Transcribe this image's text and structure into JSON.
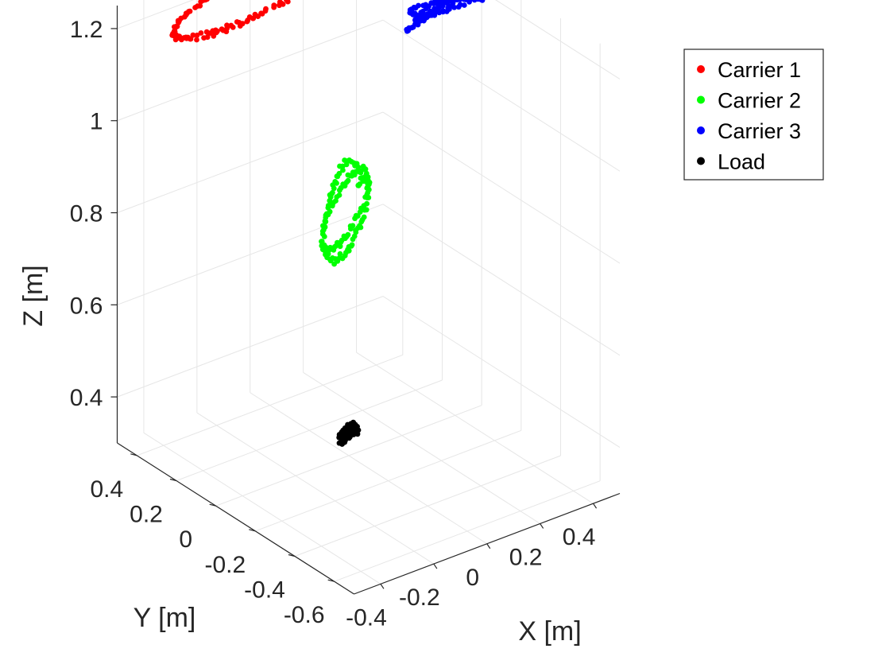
{
  "chart_data": {
    "type": "scatter",
    "title": "",
    "xlabel": "X [m]",
    "ylabel": "Y [m]",
    "zlabel": "Z [m]",
    "xlim": [
      -0.5,
      0.5
    ],
    "ylim": [
      -0.7,
      0.5
    ],
    "zlim": [
      0.3,
      1.25
    ],
    "grid": true,
    "legend_position": "top-right",
    "x_ticks": [
      {
        "value": -0.4,
        "label": "-0.4"
      },
      {
        "value": -0.2,
        "label": "-0.2"
      },
      {
        "value": 0,
        "label": "0"
      },
      {
        "value": 0.2,
        "label": "0.2"
      },
      {
        "value": 0.4,
        "label": "0.4"
      }
    ],
    "y_ticks": [
      {
        "value": -0.6,
        "label": "-0.6"
      },
      {
        "value": -0.4,
        "label": "-0.4"
      },
      {
        "value": -0.2,
        "label": "-0.2"
      },
      {
        "value": 0,
        "label": "0"
      },
      {
        "value": 0.2,
        "label": "0.2"
      },
      {
        "value": 0.4,
        "label": "0.4"
      }
    ],
    "z_ticks": [
      {
        "value": 0.4,
        "label": "0.4"
      },
      {
        "value": 0.6,
        "label": "0.6"
      },
      {
        "value": 0.8,
        "label": "0.8"
      },
      {
        "value": 1.0,
        "label": "1"
      },
      {
        "value": 1.2,
        "label": "1.2"
      }
    ],
    "series": [
      {
        "name": "Carrier 1",
        "color": "#ff0000",
        "center": {
          "x": -0.08,
          "y": 0.4,
          "z": 1.2
        },
        "spread": {
          "rx": 0.25,
          "ry": 0.06,
          "rz": 0.03
        },
        "loops": 2
      },
      {
        "name": "Carrier 2",
        "color": "#00ff00",
        "center": {
          "x": 0.04,
          "y": 0.07,
          "z": 0.8
        },
        "spread": {
          "rx": 0.05,
          "ry": 0.08,
          "rz": 0.08
        },
        "loops": 2
      },
      {
        "name": "Carrier 3",
        "color": "#0000ff",
        "center": {
          "x": 0.36,
          "y": 0.0,
          "z": 1.2
        },
        "spread": {
          "rx": 0.12,
          "ry": 0.04,
          "rz": 0.03
        },
        "loops": 3
      },
      {
        "name": "Load",
        "color": "#000000",
        "center": {
          "x": 0.0,
          "y": 0.0,
          "z": 0.35
        },
        "spread": {
          "rx": 0.02,
          "ry": 0.02,
          "rz": 0.02
        },
        "loops": 1
      }
    ]
  }
}
